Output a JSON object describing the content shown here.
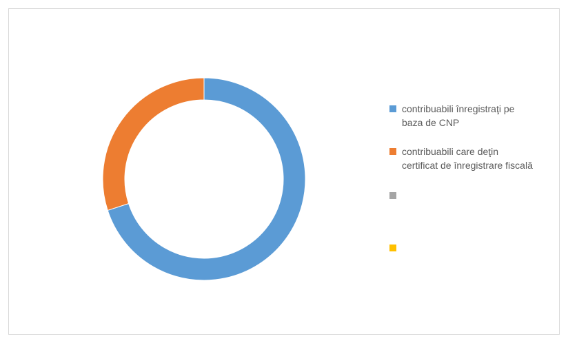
{
  "chart_data": {
    "type": "pie",
    "variant": "donut",
    "title": "",
    "categories": [
      "contribuabili înregistraţi pe baza de CNP",
      "contribuabili care deţin certificat de înregistrare fiscală",
      "",
      ""
    ],
    "values": [
      70,
      30,
      0,
      0
    ],
    "colors": [
      "#5b9bd5",
      "#ed7d31",
      "#a5a5a5",
      "#ffc000"
    ],
    "legend_position": "right"
  },
  "legend": {
    "items": [
      {
        "label": "contribuabili înregistraţi pe\nbaza de CNP",
        "color": "#5b9bd5"
      },
      {
        "label": "contribuabili care deţin\ncertificat de înregistrare fiscală",
        "color": "#ed7d31"
      },
      {
        "label": "",
        "color": "#a5a5a5"
      },
      {
        "label": "",
        "color": "#ffc000"
      }
    ]
  }
}
